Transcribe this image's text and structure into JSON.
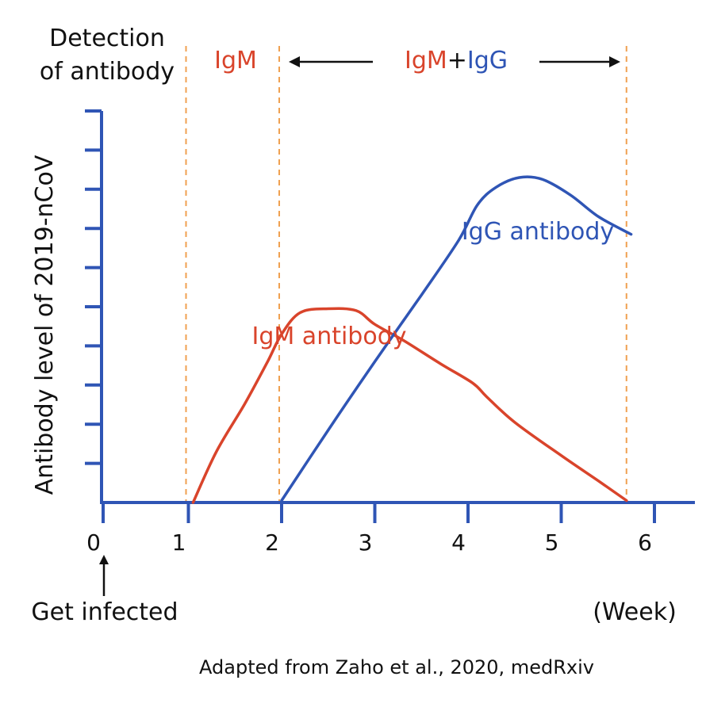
{
  "chart_data": {
    "type": "line",
    "title_lines": [
      "Detection",
      "of antibody"
    ],
    "ylabel": "Antibody level of 2019-nCoV",
    "xlabel": "(Week)",
    "x_ticks": [
      "0",
      "1",
      "2",
      "3",
      "4",
      "5",
      "6"
    ],
    "xlim": [
      0,
      6.35
    ],
    "ylim": [
      0,
      10
    ],
    "y_tick_count": 10,
    "phase_lines_x": [
      1,
      2,
      5.7
    ],
    "phases": {
      "igm_only": "IgM",
      "igm_part": "IgM",
      "plus": "+",
      "igg_part": "IgG"
    },
    "infection_label": "Get infected",
    "source": "Adapted from Zaho et al., 2020, medRxiv",
    "series": [
      {
        "name": "IgM antibody",
        "color": "#d9442b",
        "points": [
          [
            1.05,
            0
          ],
          [
            1.3,
            1.3
          ],
          [
            1.6,
            2.5
          ],
          [
            1.85,
            3.6
          ],
          [
            2.0,
            4.3
          ],
          [
            2.2,
            4.85
          ],
          [
            2.5,
            4.95
          ],
          [
            2.8,
            4.9
          ],
          [
            3.0,
            4.55
          ],
          [
            3.3,
            4.15
          ],
          [
            3.7,
            3.55
          ],
          [
            4.05,
            3.05
          ],
          [
            4.2,
            2.7
          ],
          [
            4.5,
            2.05
          ],
          [
            5.0,
            1.2
          ],
          [
            5.4,
            0.55
          ],
          [
            5.7,
            0.05
          ]
        ]
      },
      {
        "name": "IgG antibody",
        "color": "#2f55b5",
        "points": [
          [
            2.0,
            0.05
          ],
          [
            2.5,
            1.85
          ],
          [
            3.0,
            3.6
          ],
          [
            3.5,
            5.3
          ],
          [
            3.9,
            6.7
          ],
          [
            4.1,
            7.6
          ],
          [
            4.3,
            8.05
          ],
          [
            4.55,
            8.3
          ],
          [
            4.8,
            8.25
          ],
          [
            5.1,
            7.85
          ],
          [
            5.4,
            7.3
          ],
          [
            5.75,
            6.85
          ]
        ]
      }
    ]
  }
}
